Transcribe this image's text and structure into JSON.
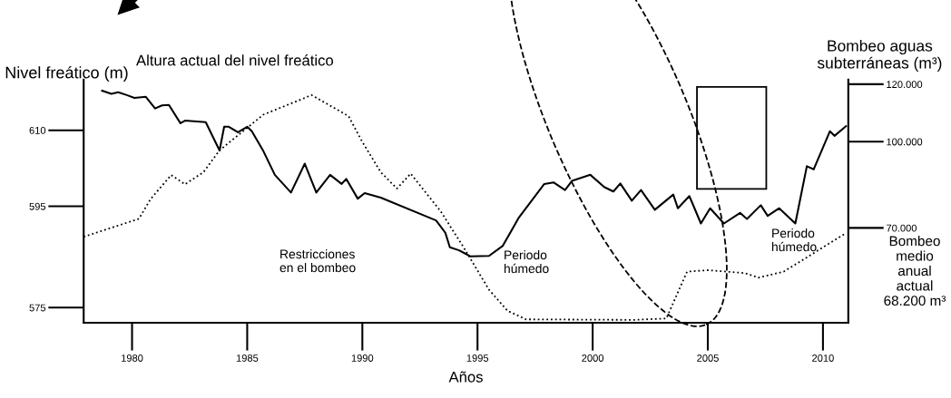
{
  "chart_data": {
    "type": "line",
    "xlabel": "Años",
    "ylabel": "Nivel freático (m)",
    "y2label": "Bombeo aguas\nsubterráneas (m³)",
    "xlim": [
      1977.9,
      2011.1
    ],
    "xticks": [
      1980,
      1985,
      1990,
      1995,
      2000,
      2005,
      2010
    ],
    "ylim": [
      572,
      620
    ],
    "yticks": [
      575,
      595,
      610
    ],
    "y2lim": [
      37000,
      121600
    ],
    "y2ticks": [
      {
        "value": 70000,
        "label": "70.000"
      },
      {
        "value": 100000,
        "label": "100.000"
      },
      {
        "value": 120000,
        "label": "120.000"
      }
    ],
    "series": [
      {
        "color": "#000000",
        "line_style": "solid",
        "x": [
          1978.7,
          1979.1,
          1979.4,
          1979.8,
          1980.1,
          1980.6,
          1981.0,
          1981.3,
          1981.6,
          1982.1,
          1982.3,
          1983.2,
          1983.8,
          1984.0,
          1984.2,
          1984.6,
          1985.0,
          1985.2,
          1985.7,
          1986.2,
          1986.9,
          1987.5,
          1988.0,
          1988.6,
          1989.1,
          1989.3,
          1989.8,
          1990.1,
          1990.8,
          1993.2,
          1993.6,
          1993.8,
          1994.2,
          1994.7,
          1995.5,
          1996.1,
          1996.8,
          1997.9,
          1998.3,
          1998.8,
          1999.1,
          1999.9,
          2000.5,
          2000.9,
          2001.2,
          2001.7,
          2002.1,
          2002.7,
          2003.5,
          2003.7,
          2004.2,
          2004.7,
          2005.1,
          2005.7,
          2006.4,
          2006.7,
          2007.3,
          2007.6,
          2008.1,
          2008.8,
          2009.3,
          2009.6,
          2010.3,
          2010.5,
          2011.0
        ],
        "values": [
          617.8,
          617.2,
          617.5,
          616.9,
          616.4,
          616.6,
          614.3,
          614.9,
          615.0,
          611.4,
          611.9,
          611.6,
          606.0,
          610.7,
          610.7,
          609.6,
          610.7,
          609.8,
          605.9,
          601.2,
          597.7,
          603.4,
          597.7,
          601.2,
          599.4,
          600.4,
          596.5,
          597.6,
          596.7,
          592.2,
          589.8,
          586.9,
          586.3,
          585.1,
          585.2,
          587.2,
          592.8,
          599.4,
          599.7,
          598.2,
          600.0,
          601.2,
          598.8,
          597.9,
          599.5,
          596.1,
          598.2,
          594.3,
          597.3,
          594.6,
          597.0,
          591.6,
          594.6,
          591.6,
          593.7,
          592.5,
          595.2,
          593.1,
          594.6,
          591.6,
          602.9,
          602.3,
          609.8,
          608.9,
          610.8
        ]
      },
      {
        "color": "#000000",
        "line_style": "dotted",
        "axis": "y2",
        "x": [
          1977.9,
          1980.3,
          1980.8,
          1981.7,
          1982.3,
          1983.1,
          1983.8,
          1985.7,
          1987.8,
          1989.4,
          1990.0,
          1990.8,
          1991.5,
          1992.1,
          1993.4,
          1994.4,
          1995.5,
          1996.3,
          1997.1,
          2001.8,
          2003.2,
          2004.1,
          2005.0,
          2006.6,
          2007.2,
          2008.3,
          2011.0
        ],
        "values": [
          66900,
          73200,
          80000,
          88400,
          85200,
          89400,
          97000,
          109400,
          116200,
          108900,
          99900,
          89400,
          83700,
          88900,
          75800,
          63200,
          48500,
          41200,
          38200,
          38000,
          38500,
          54800,
          55300,
          54300,
          52700,
          54800,
          68200
        ]
      }
    ],
    "annotations": [
      "Altura actual del nivel freático",
      "Restricciones\nen el bombeo",
      "Periodo\nhúmedo",
      "Periodo\nhúmedo",
      "Bombeo\nmedio\nanual\nactual\n68.200 m³"
    ]
  }
}
